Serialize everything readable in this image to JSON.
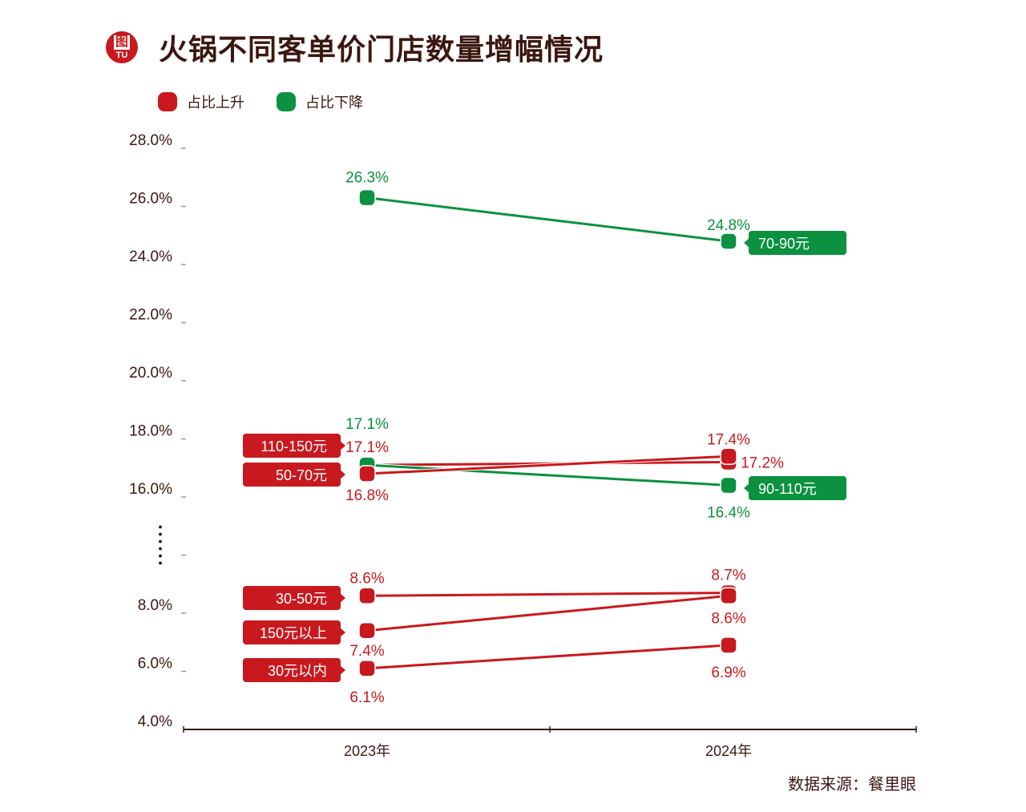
{
  "header": {
    "title": "火锅不同客单价门店数量增幅情况",
    "logo_main": "图",
    "logo_sub": "TU"
  },
  "legend": [
    {
      "label": "占比上升",
      "color": "#c8191e"
    },
    {
      "label": "占比下降",
      "color": "#0b9140"
    }
  ],
  "chart_data": {
    "type": "line",
    "title": "火锅不同客单价门店数量增幅情况",
    "xlabel": "",
    "ylabel": "",
    "categories": [
      "2023年",
      "2024年"
    ],
    "ylim": [
      4,
      28
    ],
    "axis_break": [
      10,
      14
    ],
    "grid": false,
    "legend_position": "top-left",
    "yticks": [
      {
        "value": 28,
        "label": "28.0%"
      },
      {
        "value": 26,
        "label": "26.0%"
      },
      {
        "value": 24,
        "label": "24.0%"
      },
      {
        "value": 22,
        "label": "22.0%"
      },
      {
        "value": 20,
        "label": "20.0%"
      },
      {
        "value": 18,
        "label": "18.0%"
      },
      {
        "value": 16,
        "label": "16.0%"
      },
      {
        "value": 8,
        "label": "8.0%"
      },
      {
        "value": 6,
        "label": "6.0%"
      },
      {
        "value": 4,
        "label": "4.0%"
      }
    ],
    "series": [
      {
        "name": "70-90元",
        "trend": "占比下降",
        "color": "#0b9140",
        "values": [
          26.3,
          24.8
        ],
        "labels": [
          "26.3%",
          "24.8%"
        ]
      },
      {
        "name": "110-150元",
        "trend": "占比上升",
        "color": "#c8191e",
        "values": [
          17.1,
          17.2
        ],
        "labels": [
          "17.1%",
          "17.2%"
        ]
      },
      {
        "name": "90-110元",
        "trend": "占比下降",
        "color": "#0b9140",
        "values": [
          17.1,
          16.4
        ],
        "labels": [
          "17.1%",
          "16.4%"
        ]
      },
      {
        "name": "50-70元",
        "trend": "占比上升",
        "color": "#c8191e",
        "values": [
          16.8,
          17.4
        ],
        "labels": [
          "16.8%",
          "17.4%"
        ]
      },
      {
        "name": "30-50元",
        "trend": "占比上升",
        "color": "#c8191e",
        "values": [
          8.6,
          8.7
        ],
        "labels": [
          "8.6%",
          "8.7%"
        ]
      },
      {
        "name": "150元以上",
        "trend": "占比上升",
        "color": "#c8191e",
        "values": [
          7.4,
          8.6
        ],
        "labels": [
          "7.4%",
          "8.6%"
        ]
      },
      {
        "name": "30元以内",
        "trend": "占比上升",
        "color": "#c8191e",
        "values": [
          6.1,
          6.9
        ],
        "labels": [
          "6.1%",
          "6.9%"
        ]
      }
    ],
    "source": "数据来源：餐里眼"
  }
}
